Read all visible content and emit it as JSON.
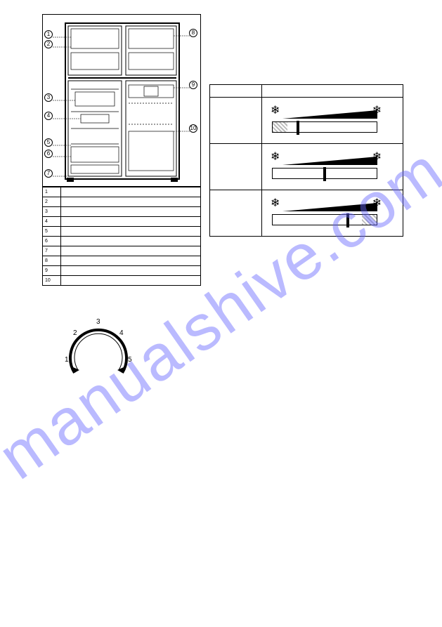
{
  "watermark": "manualshive.com",
  "page_number": "",
  "callouts": {
    "left": [
      "1",
      "2",
      "3",
      "4",
      "5",
      "6",
      "7"
    ],
    "right": [
      "8",
      "9",
      "10"
    ]
  },
  "parts_table": {
    "rows": [
      {
        "num": "1",
        "label": ""
      },
      {
        "num": "2",
        "label": ""
      },
      {
        "num": "3",
        "label": ""
      },
      {
        "num": "4",
        "label": ""
      },
      {
        "num": "5",
        "label": ""
      },
      {
        "num": "6",
        "label": ""
      },
      {
        "num": "7",
        "label": ""
      },
      {
        "num": "8",
        "label": ""
      },
      {
        "num": "9",
        "label": ""
      },
      {
        "num": "10",
        "label": ""
      }
    ]
  },
  "freezer_control": {
    "header_left": "",
    "header_right": "",
    "rows": [
      {
        "label": "",
        "left_snow": "❄",
        "right_snow": "❄",
        "hatch_left_pct": 14,
        "hatch_right_pct": 0,
        "mark_pct": 24,
        "wedge_start_pct": 10,
        "bar_color_main": "#ffffff",
        "bar_color_hatch": "#bbbbbb",
        "mark_color": "#000000"
      },
      {
        "label": "",
        "left_snow": "❄",
        "right_snow": "❄",
        "hatch_left_pct": 0,
        "hatch_right_pct": 0,
        "mark_pct": 50,
        "wedge_start_pct": 10,
        "bar_color_main": "#ffffff",
        "bar_color_hatch": "#bbbbbb",
        "mark_color": "#000000"
      },
      {
        "label": "",
        "left_snow": "❄",
        "right_snow": "❄",
        "hatch_left_pct": 0,
        "hatch_right_pct": 14,
        "mark_pct": 72,
        "wedge_start_pct": 10,
        "bar_color_main": "#ffffff",
        "bar_color_hatch": "#bbbbbb",
        "mark_color": "#000000"
      }
    ]
  },
  "dial": {
    "labels": [
      "1",
      "2",
      "3",
      "4",
      "5"
    ]
  },
  "text_sections": {
    "left_heading": "",
    "right_heading": ""
  }
}
